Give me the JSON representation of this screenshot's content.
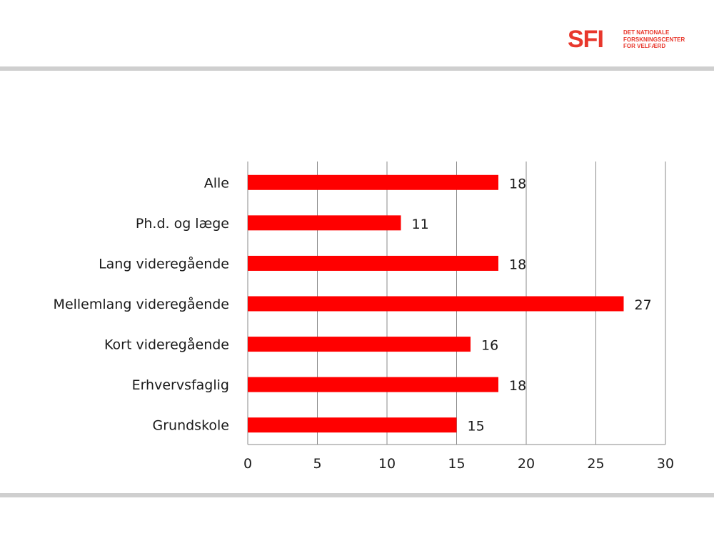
{
  "brand": {
    "mark": "SFI",
    "subtitle_lines": [
      "DET NATIONALE",
      "FORSKNINGSCENTER",
      "FOR VELFÆRD"
    ],
    "color": "#e8372c"
  },
  "colors": {
    "bar": "#ff0000",
    "rule": "#cfcfcf",
    "grid": "#8a8a8a"
  },
  "chart_data": {
    "type": "bar",
    "orientation": "horizontal",
    "categories": [
      "Alle",
      "Ph.d. og læge",
      "Lang videregående",
      "Mellemlang videregående",
      "Kort videregående",
      "Erhvervsfaglig",
      "Grundskole"
    ],
    "values": [
      18,
      11,
      18,
      27,
      16,
      18,
      15
    ],
    "data_labels": [
      "18",
      "11",
      "18",
      "27",
      "16",
      "18",
      "15"
    ],
    "xlim": [
      0,
      30
    ],
    "xticks": [
      0,
      5,
      10,
      15,
      20,
      25,
      30
    ],
    "xtick_labels": [
      "0",
      "5",
      "10",
      "15",
      "20",
      "25",
      "30"
    ],
    "grid": true,
    "legend": "none"
  }
}
